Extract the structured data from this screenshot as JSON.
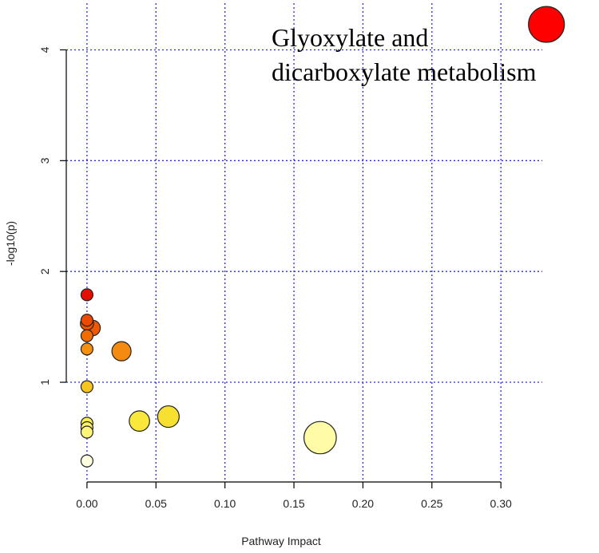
{
  "chart_data": {
    "type": "scatter",
    "title": "",
    "xlabel": "Pathway Impact",
    "ylabel": "-log10(p)",
    "xlim": [
      -0.015,
      0.33
    ],
    "ylim": [
      0.1,
      4.45
    ],
    "x_ticks": [
      0.0,
      0.05,
      0.1,
      0.15,
      0.2,
      0.25,
      0.3
    ],
    "x_tick_labels": [
      "0.00",
      "0.05",
      "0.10",
      "0.15",
      "0.20",
      "0.25",
      "0.30"
    ],
    "y_ticks": [
      1,
      2,
      3,
      4
    ],
    "y_tick_labels": [
      "1",
      "2",
      "3",
      "4"
    ],
    "grid": true,
    "annotation": {
      "lines": [
        "Glyoxylate and",
        "dicarboxylate metabolism"
      ]
    },
    "points": [
      {
        "x": 0.333,
        "y": 4.23,
        "size": 3.0,
        "color": "#ff0000"
      },
      {
        "x": 0.0,
        "y": 1.79,
        "size": 1.0,
        "color": "#e60e00"
      },
      {
        "x": 0.0,
        "y": 1.56,
        "size": 1.0,
        "color": "#ec4a00"
      },
      {
        "x": 0.0,
        "y": 1.53,
        "size": 1.1,
        "color": "#ee5500"
      },
      {
        "x": 0.004,
        "y": 1.49,
        "size": 1.3,
        "color": "#f05800"
      },
      {
        "x": 0.0,
        "y": 1.42,
        "size": 1.0,
        "color": "#f36c00"
      },
      {
        "x": 0.025,
        "y": 1.28,
        "size": 1.6,
        "color": "#f48a10"
      },
      {
        "x": 0.0,
        "y": 1.3,
        "size": 1.0,
        "color": "#f49010"
      },
      {
        "x": 0.0,
        "y": 0.96,
        "size": 1.0,
        "color": "#f7c520"
      },
      {
        "x": 0.059,
        "y": 0.69,
        "size": 1.8,
        "color": "#f8e030"
      },
      {
        "x": 0.038,
        "y": 0.65,
        "size": 1.7,
        "color": "#f9e73a"
      },
      {
        "x": 0.0,
        "y": 0.63,
        "size": 1.0,
        "color": "#fbee50"
      },
      {
        "x": 0.0,
        "y": 0.59,
        "size": 1.0,
        "color": "#fcf26a"
      },
      {
        "x": 0.0,
        "y": 0.55,
        "size": 1.0,
        "color": "#fdf47a"
      },
      {
        "x": 0.169,
        "y": 0.5,
        "size": 2.7,
        "color": "#fffba6"
      },
      {
        "x": 0.0,
        "y": 0.29,
        "size": 1.0,
        "color": "#ffffe0"
      }
    ]
  }
}
